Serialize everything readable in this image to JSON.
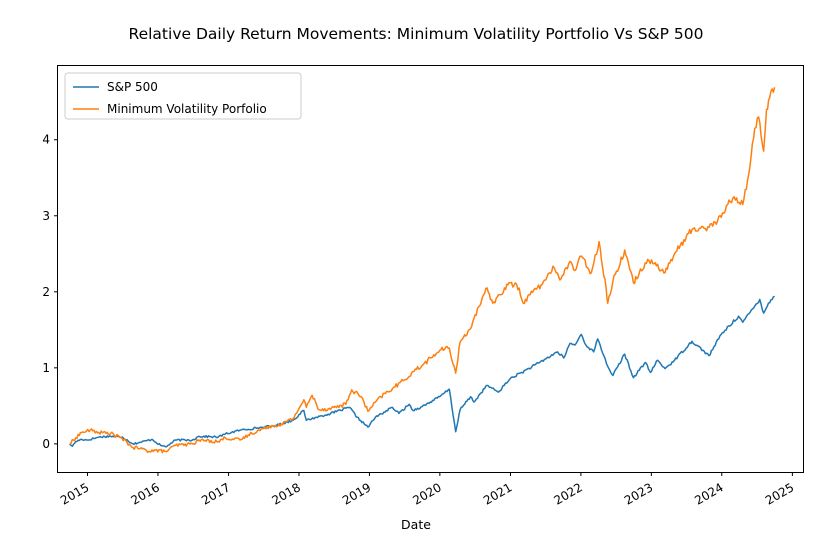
{
  "chart_data": {
    "type": "line",
    "title": "Relative Daily Return Movements: Minimum Volatility Portfolio Vs S&P 500",
    "xlabel": "Date",
    "ylabel": "",
    "xlim": [
      "2014-08-01",
      "2025-02-25"
    ],
    "ylim": [
      -0.37,
      4.97
    ],
    "x_ticks": [
      "2015",
      "2016",
      "2017",
      "2018",
      "2019",
      "2020",
      "2021",
      "2022",
      "2023",
      "2024",
      "2025"
    ],
    "y_ticks": [
      0,
      1,
      2,
      3,
      4
    ],
    "grid": false,
    "legend_position": "top-left",
    "series": [
      {
        "name": "S&P 500",
        "color": "#1f77b4",
        "points": [
          [
            "2014-10-01",
            0.0
          ],
          [
            "2014-10-15",
            -0.03
          ],
          [
            "2014-11-01",
            0.03
          ],
          [
            "2014-12-01",
            0.06
          ],
          [
            "2015-01-01",
            0.05
          ],
          [
            "2015-03-01",
            0.09
          ],
          [
            "2015-05-01",
            0.1
          ],
          [
            "2015-07-01",
            0.09
          ],
          [
            "2015-08-25",
            0.0
          ],
          [
            "2015-10-01",
            0.02
          ],
          [
            "2015-12-01",
            0.06
          ],
          [
            "2016-01-15",
            -0.02
          ],
          [
            "2016-02-11",
            -0.04
          ],
          [
            "2016-04-01",
            0.05
          ],
          [
            "2016-06-27",
            0.05
          ],
          [
            "2016-08-01",
            0.1
          ],
          [
            "2016-11-08",
            0.09
          ],
          [
            "2016-12-15",
            0.13
          ],
          [
            "2017-03-01",
            0.18
          ],
          [
            "2017-06-01",
            0.21
          ],
          [
            "2017-09-01",
            0.24
          ],
          [
            "2017-12-01",
            0.31
          ],
          [
            "2018-01-26",
            0.44
          ],
          [
            "2018-02-08",
            0.31
          ],
          [
            "2018-04-01",
            0.35
          ],
          [
            "2018-06-01",
            0.39
          ],
          [
            "2018-09-20",
            0.48
          ],
          [
            "2018-10-29",
            0.35
          ],
          [
            "2018-12-24",
            0.22
          ],
          [
            "2019-02-01",
            0.35
          ],
          [
            "2019-04-30",
            0.48
          ],
          [
            "2019-06-03",
            0.4
          ],
          [
            "2019-07-26",
            0.52
          ],
          [
            "2019-08-15",
            0.44
          ],
          [
            "2019-10-01",
            0.49
          ],
          [
            "2019-12-31",
            0.62
          ],
          [
            "2020-02-19",
            0.72
          ],
          [
            "2020-03-23",
            0.16
          ],
          [
            "2020-04-15",
            0.45
          ],
          [
            "2020-06-08",
            0.62
          ],
          [
            "2020-06-26",
            0.55
          ],
          [
            "2020-09-01",
            0.77
          ],
          [
            "2020-10-30",
            0.68
          ],
          [
            "2020-12-31",
            0.86
          ],
          [
            "2021-03-01",
            0.94
          ],
          [
            "2021-06-01",
            1.07
          ],
          [
            "2021-09-02",
            1.21
          ],
          [
            "2021-10-04",
            1.13
          ],
          [
            "2021-11-05",
            1.32
          ],
          [
            "2021-12-01",
            1.3
          ],
          [
            "2022-01-03",
            1.44
          ],
          [
            "2022-01-27",
            1.3
          ],
          [
            "2022-03-08",
            1.21
          ],
          [
            "2022-03-29",
            1.38
          ],
          [
            "2022-05-20",
            1.02
          ],
          [
            "2022-06-16",
            0.9
          ],
          [
            "2022-08-16",
            1.18
          ],
          [
            "2022-09-30",
            0.87
          ],
          [
            "2022-11-30",
            1.07
          ],
          [
            "2022-12-28",
            0.94
          ],
          [
            "2023-02-02",
            1.1
          ],
          [
            "2023-03-13",
            0.99
          ],
          [
            "2023-05-01",
            1.1
          ],
          [
            "2023-07-31",
            1.35
          ],
          [
            "2023-10-27",
            1.16
          ],
          [
            "2023-12-29",
            1.44
          ],
          [
            "2024-03-28",
            1.68
          ],
          [
            "2024-04-19",
            1.6
          ],
          [
            "2024-07-16",
            1.9
          ],
          [
            "2024-08-05",
            1.72
          ],
          [
            "2024-08-30",
            1.85
          ],
          [
            "2024-10-01",
            1.94
          ]
        ]
      },
      {
        "name": "Minimum Volatility Porfolio",
        "color": "#ff7f0e",
        "points": [
          [
            "2014-10-01",
            0.0
          ],
          [
            "2014-11-01",
            0.08
          ],
          [
            "2014-12-01",
            0.15
          ],
          [
            "2015-01-15",
            0.18
          ],
          [
            "2015-03-01",
            0.15
          ],
          [
            "2015-05-01",
            0.14
          ],
          [
            "2015-06-29",
            0.07
          ],
          [
            "2015-08-25",
            -0.05
          ],
          [
            "2015-10-01",
            -0.06
          ],
          [
            "2015-11-15",
            -0.1
          ],
          [
            "2015-12-01",
            -0.08
          ],
          [
            "2016-02-11",
            -0.1
          ],
          [
            "2016-04-01",
            -0.02
          ],
          [
            "2016-06-27",
            0.0
          ],
          [
            "2016-08-01",
            0.05
          ],
          [
            "2016-11-08",
            0.03
          ],
          [
            "2016-12-15",
            0.08
          ],
          [
            "2017-03-01",
            0.05
          ],
          [
            "2017-05-01",
            0.14
          ],
          [
            "2017-08-01",
            0.23
          ],
          [
            "2017-10-01",
            0.26
          ],
          [
            "2017-12-01",
            0.33
          ],
          [
            "2018-01-26",
            0.58
          ],
          [
            "2018-02-08",
            0.48
          ],
          [
            "2018-03-10",
            0.64
          ],
          [
            "2018-04-15",
            0.45
          ],
          [
            "2018-06-01",
            0.46
          ],
          [
            "2018-09-01",
            0.52
          ],
          [
            "2018-10-01",
            0.71
          ],
          [
            "2018-11-20",
            0.62
          ],
          [
            "2018-12-24",
            0.43
          ],
          [
            "2019-03-01",
            0.62
          ],
          [
            "2019-05-01",
            0.73
          ],
          [
            "2019-07-01",
            0.84
          ],
          [
            "2019-08-15",
            0.95
          ],
          [
            "2019-10-01",
            1.03
          ],
          [
            "2019-12-31",
            1.23
          ],
          [
            "2020-02-19",
            1.26
          ],
          [
            "2020-03-23",
            0.93
          ],
          [
            "2020-04-15",
            1.34
          ],
          [
            "2020-06-01",
            1.5
          ],
          [
            "2020-08-01",
            1.85
          ],
          [
            "2020-09-02",
            2.05
          ],
          [
            "2020-10-01",
            1.85
          ],
          [
            "2020-12-31",
            2.12
          ],
          [
            "2021-02-15",
            2.05
          ],
          [
            "2021-03-08",
            1.85
          ],
          [
            "2021-05-01",
            2.02
          ],
          [
            "2021-06-15",
            2.1
          ],
          [
            "2021-08-15",
            2.32
          ],
          [
            "2021-09-20",
            2.17
          ],
          [
            "2021-11-05",
            2.4
          ],
          [
            "2021-12-01",
            2.28
          ],
          [
            "2022-01-03",
            2.47
          ],
          [
            "2022-02-24",
            2.25
          ],
          [
            "2022-04-05",
            2.66
          ],
          [
            "2022-05-12",
            2.04
          ],
          [
            "2022-05-20",
            1.85
          ],
          [
            "2022-06-16",
            2.14
          ],
          [
            "2022-08-16",
            2.55
          ],
          [
            "2022-09-30",
            2.12
          ],
          [
            "2022-11-30",
            2.38
          ],
          [
            "2023-01-02",
            2.42
          ],
          [
            "2023-03-13",
            2.25
          ],
          [
            "2023-05-01",
            2.5
          ],
          [
            "2023-07-31",
            2.82
          ],
          [
            "2023-10-27",
            2.85
          ],
          [
            "2023-12-29",
            2.98
          ],
          [
            "2024-02-01",
            3.15
          ],
          [
            "2024-03-05",
            3.25
          ],
          [
            "2024-04-19",
            3.15
          ],
          [
            "2024-05-20",
            3.55
          ],
          [
            "2024-06-20",
            4.15
          ],
          [
            "2024-07-10",
            4.3
          ],
          [
            "2024-08-05",
            3.85
          ],
          [
            "2024-08-20",
            4.4
          ],
          [
            "2024-09-05",
            4.55
          ],
          [
            "2024-10-01",
            4.69
          ]
        ]
      }
    ]
  }
}
